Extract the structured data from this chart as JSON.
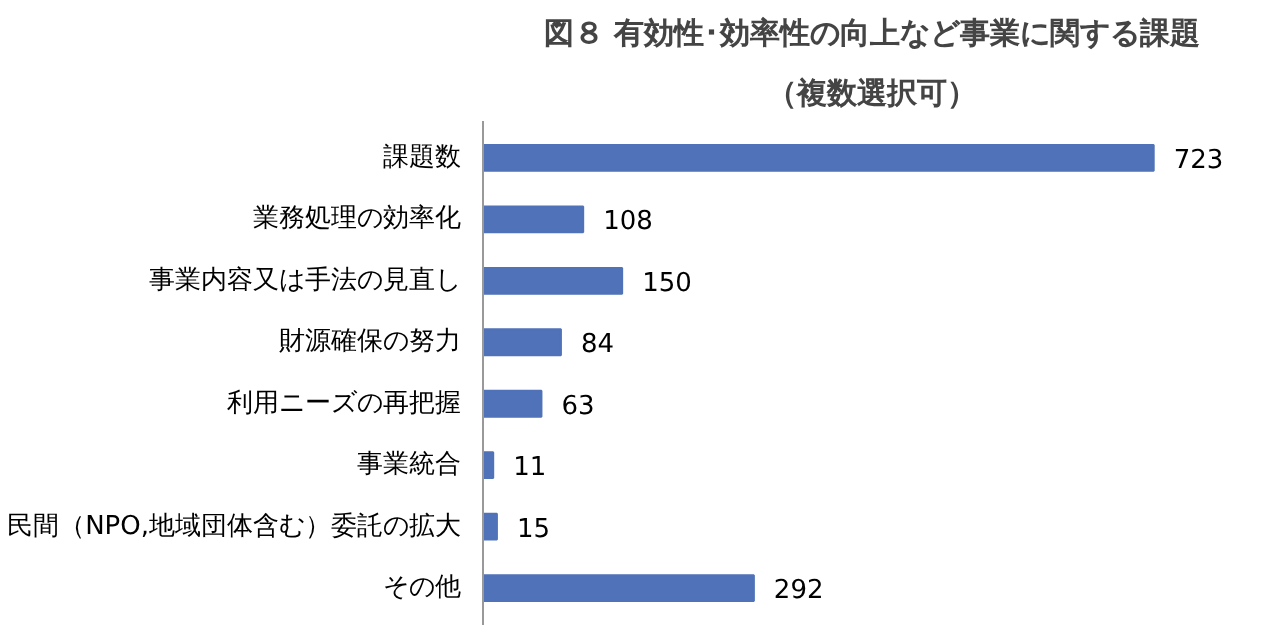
{
  "chart_data": {
    "type": "bar",
    "orientation": "horizontal",
    "title": "図８ 有効性･効率性の向上など事業に関する課題",
    "subtitle": "（複数選択可）",
    "categories": [
      "課題数",
      "業務処理の効率化",
      "事業内容又は手法の見直し",
      "財源確保の努力",
      "利用ニーズの再把握",
      "事業統合",
      "民間（NPO,地域団体含む）委託の拡大",
      "その他"
    ],
    "values": [
      723,
      108,
      150,
      84,
      63,
      11,
      15,
      292
    ],
    "color": "#4f72b8",
    "data_labels": true,
    "tick_labels": "y"
  }
}
